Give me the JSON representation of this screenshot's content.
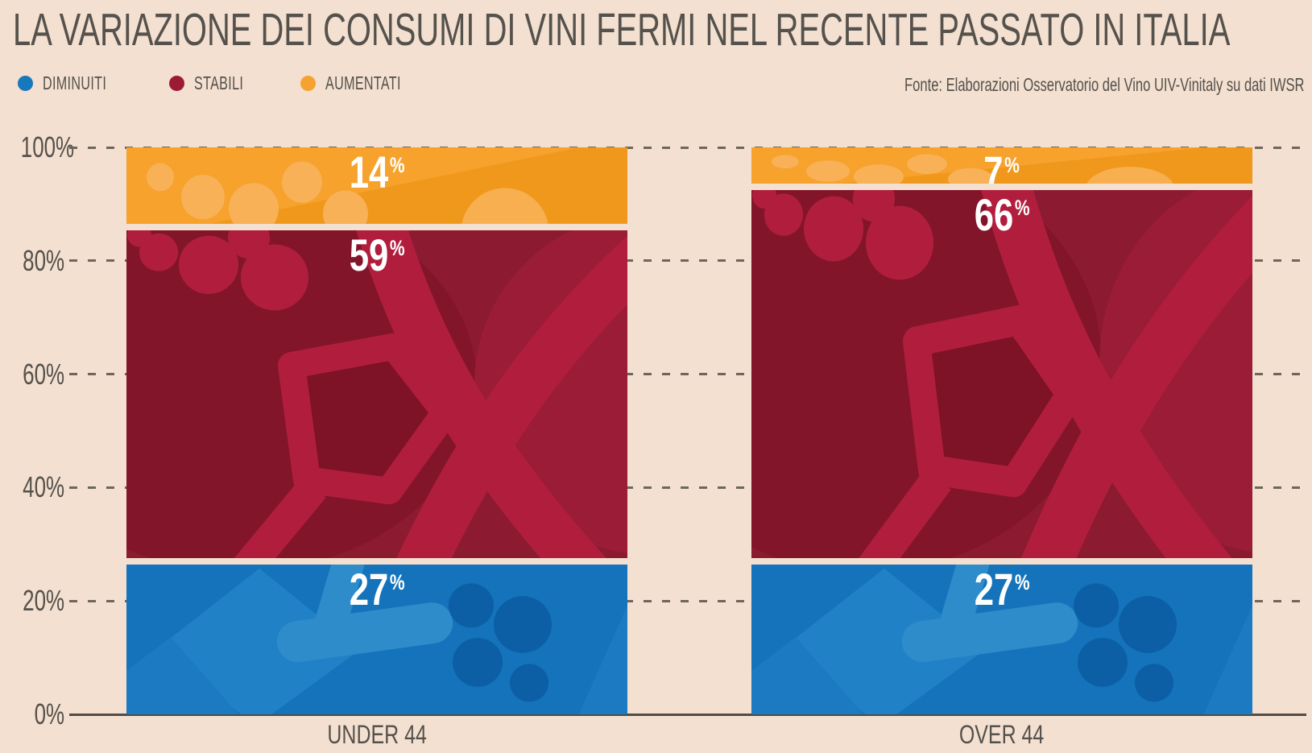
{
  "page": {
    "background": "#F3E0D0",
    "text_color": "#55514C"
  },
  "title": "LA VARIAZIONE DEI CONSUMI DI VINI FERMI NEL RECENTE PASSATO IN ITALIA",
  "source": "Fonte: Elaborazioni Osservatorio del Vino UIV-Vinitaly su dati IWSR",
  "legend": {
    "items": [
      {
        "label": "DIMINUITI",
        "color": "#1878BE"
      },
      {
        "label": "STABILI",
        "color": "#9C1B34"
      },
      {
        "label": "AUMENTATI",
        "color": "#F6A230"
      }
    ]
  },
  "chart_data": {
    "type": "bar",
    "stacked": true,
    "orientation": "vertical",
    "title": "LA VARIAZIONE DEI CONSUMI DI VINI FERMI NEL RECENTE PASSATO IN ITALIA",
    "source": "Fonte: Elaborazioni Osservatorio del Vino UIV-Vinitaly su dati IWSR",
    "unit": "%",
    "categories": [
      "UNDER 44",
      "OVER 44"
    ],
    "series": [
      {
        "name": "DIMINUITI",
        "color": "#1473BB",
        "values": [
          27,
          27
        ]
      },
      {
        "name": "STABILI",
        "color": "#8C1A31",
        "values": [
          59,
          66
        ]
      },
      {
        "name": "AUMENTATI",
        "color": "#F6A22D",
        "values": [
          14,
          7
        ]
      }
    ],
    "ylim": [
      0,
      100
    ],
    "yticks": [
      0,
      20,
      40,
      60,
      80,
      100
    ],
    "ytick_format": "{v}%",
    "grid": "horizontal-dashed",
    "legend_position": "top-left",
    "value_labels": "inside-top-white"
  }
}
